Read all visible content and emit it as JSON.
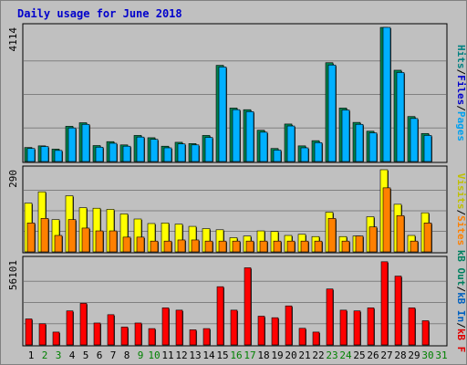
{
  "chart_data": {
    "type": "bar",
    "title": "Daily usage for June 2018",
    "categories": [
      "1",
      "2",
      "3",
      "4",
      "5",
      "6",
      "7",
      "8",
      "9",
      "10",
      "11",
      "12",
      "13",
      "14",
      "15",
      "16",
      "17",
      "18",
      "19",
      "20",
      "21",
      "22",
      "23",
      "24",
      "25",
      "26",
      "27",
      "28",
      "29",
      "30",
      "31"
    ],
    "weekend_days": [
      "2",
      "3",
      "9",
      "10",
      "16",
      "17",
      "23",
      "24",
      "30",
      "31"
    ],
    "grid": true,
    "panels": [
      {
        "id": "hits-files-pages",
        "ymax": 4114,
        "ymax_label": "4114",
        "right_labels": [
          {
            "text": "Pages",
            "color": "#00a0f0"
          },
          {
            "text": "Files",
            "color": "#0000cc"
          },
          {
            "text": "Hits",
            "color": "#008080"
          }
        ],
        "series": [
          {
            "name": "Hits",
            "color": "#00804f",
            "values": [
              430,
              480,
              380,
              1080,
              1190,
              490,
              610,
              510,
              800,
              730,
              470,
              590,
              550,
              800,
              2950,
              1640,
              1590,
              960,
              400,
              1150,
              480,
              640,
              3030,
              1640,
              1200,
              930,
              4114,
              2800,
              1380,
              860,
              0
            ]
          },
          {
            "name": "Files",
            "color": "#00b0ff",
            "values": [
              400,
              460,
              340,
              1030,
              1140,
              440,
              560,
              470,
              750,
              680,
              420,
              540,
              510,
              740,
              2900,
              1590,
              1530,
              900,
              350,
              1090,
              420,
              580,
              2960,
              1580,
              1140,
              880,
              4114,
              2730,
              1320,
              800,
              0
            ]
          }
        ]
      },
      {
        "id": "visits-sites",
        "ymax": 290,
        "ymax_label": "290",
        "right_labels": [
          {
            "text": "Sites",
            "color": "#ff8000"
          },
          {
            "text": "Visits",
            "color": "#c0c000"
          }
        ],
        "series": [
          {
            "name": "Visits",
            "color": "#ffff00",
            "values": [
              172,
              212,
              114,
              198,
              156,
              154,
              150,
              134,
              116,
              100,
              102,
              98,
              90,
              82,
              78,
              50,
              56,
              74,
              72,
              58,
              62,
              54,
              140,
              54,
              56,
              124,
              290,
              168,
              58,
              138,
              0
            ]
          },
          {
            "name": "Sites",
            "color": "#ff8000",
            "values": [
              102,
              118,
              58,
              114,
              84,
              74,
              74,
              52,
              52,
              38,
              38,
              42,
              42,
              38,
              38,
              38,
              38,
              38,
              38,
              38,
              38,
              38,
              118,
              38,
              56,
              88,
              226,
              128,
              38,
              102,
              0
            ]
          }
        ]
      },
      {
        "id": "kbf-kbin-kbout",
        "ymax": 56101,
        "ymax_label": "56101",
        "right_labels": [
          {
            "text": "kB F",
            "color": "#e00000"
          },
          {
            "text": "kB In",
            "color": "#0060c0"
          },
          {
            "text": "kB Out",
            "color": "#008060"
          }
        ],
        "series": [
          {
            "name": "kB F",
            "color": "#ff0000",
            "values": [
              17200,
              14000,
              8500,
              22500,
              27500,
              14500,
              20000,
              11800,
              14500,
              10800,
              24500,
              23000,
              10000,
              10800,
              38500,
              23000,
              51000,
              19000,
              18000,
              25800,
              11000,
              8500,
              37000,
              23000,
              22500,
              24500,
              55000,
              45500,
              24500,
              16000,
              0
            ]
          }
        ]
      }
    ]
  }
}
